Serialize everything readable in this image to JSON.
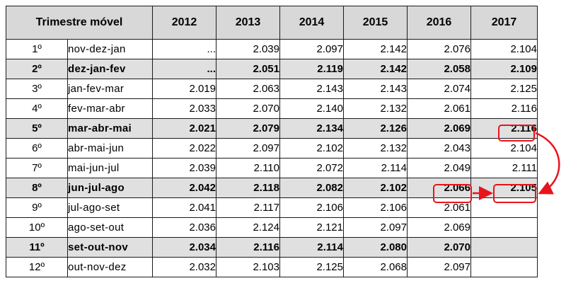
{
  "table": {
    "header": {
      "period": "Trimestre móvel",
      "years": [
        "2012",
        "2013",
        "2014",
        "2015",
        "2016",
        "2017"
      ]
    },
    "rows": [
      {
        "ord": "1º",
        "period": "nov-dez-jan",
        "bold": false,
        "values": [
          "...",
          "2.039",
          "2.097",
          "2.142",
          "2.076",
          "2.104"
        ]
      },
      {
        "ord": "2º",
        "period": "dez-jan-fev",
        "bold": true,
        "values": [
          "...",
          "2.051",
          "2.119",
          "2.142",
          "2.058",
          "2.109"
        ]
      },
      {
        "ord": "3º",
        "period": "jan-fev-mar",
        "bold": false,
        "values": [
          "2.019",
          "2.063",
          "2.143",
          "2.143",
          "2.074",
          "2.125"
        ]
      },
      {
        "ord": "4º",
        "period": "fev-mar-abr",
        "bold": false,
        "values": [
          "2.033",
          "2.070",
          "2.140",
          "2.132",
          "2.061",
          "2.116"
        ]
      },
      {
        "ord": "5º",
        "period": "mar-abr-mai",
        "bold": true,
        "values": [
          "2.021",
          "2.079",
          "2.134",
          "2.126",
          "2.069",
          "2.116"
        ]
      },
      {
        "ord": "6º",
        "period": "abr-mai-jun",
        "bold": false,
        "values": [
          "2.022",
          "2.097",
          "2.102",
          "2.132",
          "2.043",
          "2.104"
        ]
      },
      {
        "ord": "7º",
        "period": "mai-jun-jul",
        "bold": false,
        "values": [
          "2.039",
          "2.110",
          "2.072",
          "2.114",
          "2.049",
          "2.111"
        ]
      },
      {
        "ord": "8º",
        "period": "jun-jul-ago",
        "bold": true,
        "values": [
          "2.042",
          "2.118",
          "2.082",
          "2.102",
          "2.066",
          "2.105"
        ]
      },
      {
        "ord": "9º",
        "period": "jul-ago-set",
        "bold": false,
        "values": [
          "2.041",
          "2.117",
          "2.106",
          "2.106",
          "2.061",
          ""
        ]
      },
      {
        "ord": "10º",
        "period": "ago-set-out",
        "bold": false,
        "values": [
          "2.036",
          "2.124",
          "2.121",
          "2.097",
          "2.069",
          ""
        ]
      },
      {
        "ord": "11º",
        "period": "set-out-nov",
        "bold": true,
        "values": [
          "2.034",
          "2.116",
          "2.114",
          "2.080",
          "2.070",
          ""
        ]
      },
      {
        "ord": "12º",
        "period": "out-nov-dez",
        "bold": false,
        "values": [
          "2.032",
          "2.103",
          "2.125",
          "2.068",
          "2.097",
          ""
        ]
      }
    ]
  },
  "annotation": {
    "color": "#e8141b"
  }
}
